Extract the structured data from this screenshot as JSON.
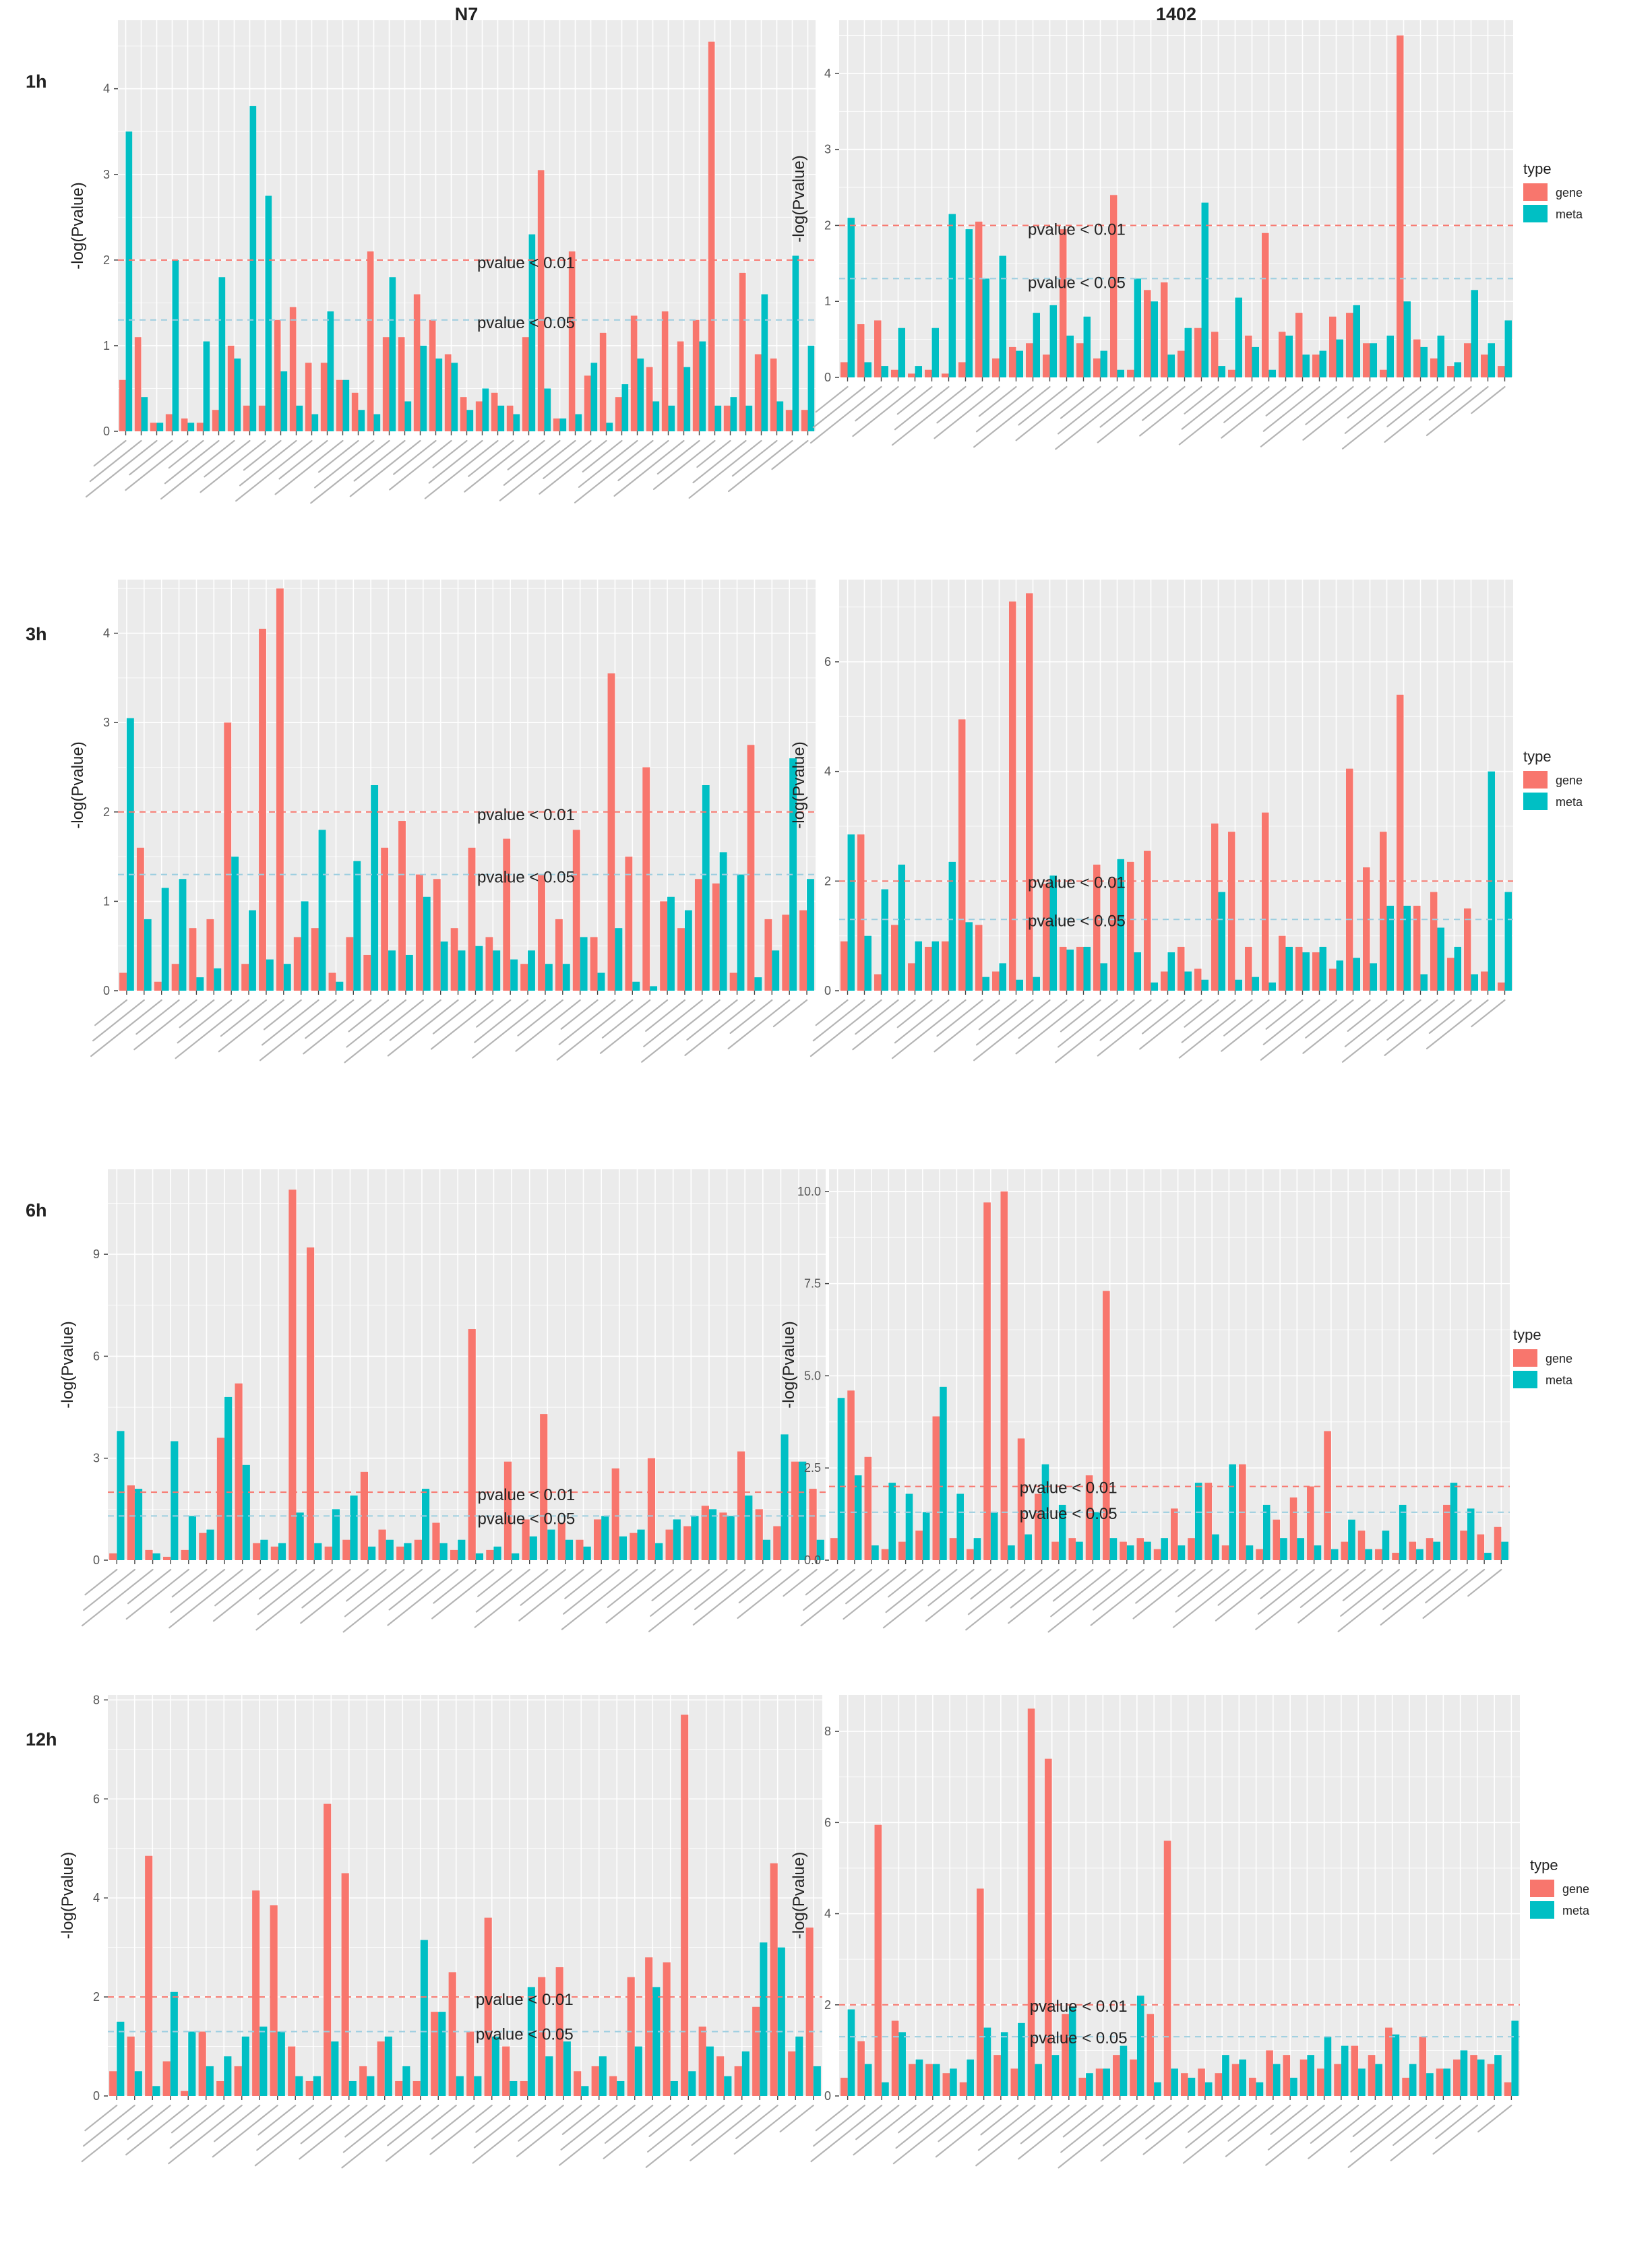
{
  "figure": {
    "columns": [
      "N7",
      "1402"
    ],
    "rows": [
      "1h",
      "3h",
      "6h",
      "12h"
    ],
    "colors": {
      "gene": "#F8766D",
      "meta": "#00BFC4",
      "panel_bg": "#EBEBEB",
      "grid": "#FFFFFF",
      "line_p01": "#F8766D",
      "line_p05": "#9CCEE0"
    },
    "legend": {
      "title": "type",
      "items": [
        "gene",
        "meta"
      ]
    }
  },
  "chart_data": [
    {
      "type": "bar",
      "column": "N7",
      "row": "1h",
      "ylabel": "-log(Pvalue)",
      "ylim": [
        0,
        4.8
      ],
      "yticks": [
        "0",
        "1",
        "2",
        "3",
        "4"
      ],
      "yticks_values": [
        0,
        1,
        2,
        3,
        4
      ],
      "thresholds": [
        {
          "label": "pvalue < 0.01",
          "value": 2.0
        },
        {
          "label": "pvalue < 0.05",
          "value": 1.3
        }
      ],
      "legend": false,
      "series": [
        {
          "name": "gene",
          "values": [
            0.6,
            1.1,
            0.1,
            0.2,
            0.15,
            0.1,
            0.25,
            1.0,
            0.3,
            0.3,
            1.3,
            1.45,
            0.8,
            0.8,
            0.6,
            0.45,
            2.1,
            1.1,
            1.1,
            1.6,
            1.3,
            0.9,
            0.4,
            0.35,
            0.45,
            0.3,
            1.1,
            3.05,
            0.15,
            2.1,
            0.65,
            1.15,
            0.4,
            1.35,
            0.75,
            1.4,
            1.05,
            1.3,
            4.55,
            0.3,
            1.85,
            0.9,
            0.85,
            0.25,
            0.25
          ]
        },
        {
          "name": "meta",
          "values": [
            3.5,
            0.4,
            0.1,
            2.0,
            0.1,
            1.05,
            1.8,
            0.85,
            3.8,
            2.75,
            0.7,
            0.3,
            0.2,
            1.4,
            0.6,
            0.25,
            0.2,
            1.8,
            0.35,
            1.0,
            0.85,
            0.8,
            0.25,
            0.5,
            0.3,
            0.2,
            2.3,
            0.5,
            0.15,
            0.2,
            0.8,
            0.1,
            0.55,
            0.85,
            0.35,
            0.3,
            0.75,
            1.05,
            0.3,
            0.4,
            0.3,
            1.6,
            0.35,
            2.05,
            1.0
          ]
        }
      ]
    },
    {
      "type": "bar",
      "column": "1402",
      "row": "1h",
      "ylabel": "-log(Pvalue)",
      "ylim": [
        0,
        4.7
      ],
      "yticks": [
        "0",
        "1",
        "2",
        "3",
        "4"
      ],
      "yticks_values": [
        0,
        1,
        2,
        3,
        4
      ],
      "thresholds": [
        {
          "label": "pvalue < 0.01",
          "value": 2.0
        },
        {
          "label": "pvalue < 0.05",
          "value": 1.3
        }
      ],
      "legend": true,
      "series": [
        {
          "name": "gene",
          "values": [
            0.2,
            0.7,
            0.75,
            0.1,
            0.05,
            0.1,
            0.05,
            0.2,
            2.05,
            0.25,
            0.4,
            0.45,
            0.3,
            1.95,
            0.45,
            0.25,
            2.4,
            0.1,
            1.15,
            1.25,
            0.35,
            0.65,
            0.6,
            0.1,
            0.55,
            1.9,
            0.6,
            0.85,
            0.3,
            0.8,
            0.85,
            0.45,
            0.1,
            4.5,
            0.5,
            0.25,
            0.15,
            0.45,
            0.3,
            0.15
          ]
        },
        {
          "name": "meta",
          "values": [
            2.1,
            0.2,
            0.15,
            0.65,
            0.15,
            0.65,
            2.15,
            1.95,
            1.3,
            1.6,
            0.35,
            0.85,
            0.95,
            0.55,
            0.8,
            0.35,
            0.1,
            1.3,
            1.0,
            0.3,
            0.65,
            2.3,
            0.15,
            1.05,
            0.4,
            0.1,
            0.55,
            0.3,
            0.35,
            0.5,
            0.95,
            0.45,
            0.55,
            1.0,
            0.4,
            0.55,
            0.2,
            1.15,
            0.45,
            0.75
          ]
        }
      ]
    },
    {
      "type": "bar",
      "column": "N7",
      "row": "3h",
      "ylabel": "-log(Pvalue)",
      "ylim": [
        0,
        4.6
      ],
      "yticks": [
        "0",
        "1",
        "2",
        "3",
        "4"
      ],
      "yticks_values": [
        0,
        1,
        2,
        3,
        4
      ],
      "thresholds": [
        {
          "label": "pvalue < 0.01",
          "value": 2.0
        },
        {
          "label": "pvalue < 0.05",
          "value": 1.3
        }
      ],
      "legend": false,
      "series": [
        {
          "name": "gene",
          "values": [
            0.2,
            1.6,
            0.1,
            0.3,
            0.7,
            0.8,
            3.0,
            0.3,
            4.05,
            4.5,
            0.6,
            0.7,
            0.2,
            0.6,
            0.4,
            1.6,
            1.9,
            1.3,
            1.25,
            0.7,
            1.6,
            0.6,
            1.7,
            0.3,
            1.3,
            0.8,
            1.8,
            0.6,
            3.55,
            1.5,
            2.5,
            1.0,
            0.7,
            1.25,
            1.2,
            0.2,
            2.75,
            0.8,
            0.85,
            0.9
          ]
        },
        {
          "name": "meta",
          "values": [
            3.05,
            0.8,
            1.15,
            1.25,
            0.15,
            0.25,
            1.5,
            0.9,
            0.35,
            0.3,
            1.0,
            1.8,
            0.1,
            1.45,
            2.3,
            0.45,
            0.4,
            1.05,
            0.55,
            0.45,
            0.5,
            0.45,
            0.35,
            0.45,
            0.3,
            0.3,
            0.6,
            0.2,
            0.7,
            0.1,
            0.05,
            1.05,
            0.9,
            2.3,
            1.55,
            1.3,
            0.15,
            0.45,
            2.6,
            1.25
          ]
        }
      ]
    },
    {
      "type": "bar",
      "column": "1402",
      "row": "3h",
      "ylabel": "-log(Pvalue)",
      "ylim": [
        0,
        7.5
      ],
      "yticks": [
        "0",
        "2",
        "4",
        "6"
      ],
      "yticks_values": [
        0,
        2,
        4,
        6
      ],
      "thresholds": [
        {
          "label": "pvalue < 0.01",
          "value": 2.0
        },
        {
          "label": "pvalue < 0.05",
          "value": 1.3
        }
      ],
      "legend": true,
      "series": [
        {
          "name": "gene",
          "values": [
            0.9,
            2.85,
            0.3,
            1.2,
            0.5,
            0.8,
            0.9,
            4.95,
            1.2,
            0.35,
            7.1,
            7.25,
            1.95,
            0.8,
            0.8,
            2.3,
            2.05,
            2.35,
            2.55,
            0.35,
            0.8,
            0.4,
            3.05,
            2.9,
            0.8,
            3.25,
            1.0,
            0.8,
            0.7,
            0.4,
            4.05,
            2.25,
            2.9,
            5.4,
            1.55,
            1.8,
            0.6,
            1.5,
            0.35,
            0.15
          ]
        },
        {
          "name": "meta",
          "values": [
            2.85,
            1.0,
            1.85,
            2.3,
            0.9,
            0.9,
            2.35,
            1.25,
            0.25,
            0.5,
            0.2,
            0.25,
            2.1,
            0.75,
            0.8,
            0.5,
            2.4,
            0.7,
            0.15,
            0.7,
            0.35,
            0.2,
            1.8,
            0.2,
            0.25,
            0.15,
            0.8,
            0.7,
            0.8,
            0.55,
            0.6,
            0.5,
            1.55,
            1.55,
            0.3,
            1.15,
            0.8,
            0.3,
            4.0,
            1.8
          ]
        }
      ]
    },
    {
      "type": "bar",
      "column": "N7",
      "row": "6h",
      "ylabel": "-log(Pvalue)",
      "ylim": [
        0,
        11.5
      ],
      "yticks": [
        "0",
        "3",
        "6",
        "9"
      ],
      "yticks_values": [
        0,
        3,
        6,
        9
      ],
      "thresholds": [
        {
          "label": "pvalue < 0.01",
          "value": 2.0
        },
        {
          "label": "pvalue < 0.05",
          "value": 1.3
        }
      ],
      "legend": false,
      "series": [
        {
          "name": "gene",
          "values": [
            0.2,
            2.2,
            0.3,
            0.1,
            0.3,
            0.8,
            3.6,
            5.2,
            0.5,
            0.4,
            10.9,
            9.2,
            0.4,
            0.6,
            2.6,
            0.9,
            0.4,
            0.6,
            1.1,
            0.3,
            6.8,
            0.3,
            2.9,
            1.2,
            4.3,
            1.1,
            0.6,
            1.2,
            2.7,
            0.8,
            3.0,
            0.9,
            1.0,
            1.6,
            1.4,
            3.2,
            1.5,
            1.0,
            2.9,
            2.1
          ]
        },
        {
          "name": "meta",
          "values": [
            3.8,
            2.1,
            0.2,
            3.5,
            1.3,
            0.9,
            4.8,
            2.8,
            0.6,
            0.5,
            1.4,
            0.5,
            1.5,
            1.9,
            0.4,
            0.6,
            0.5,
            2.1,
            0.5,
            0.6,
            0.2,
            0.4,
            0.2,
            0.7,
            0.9,
            0.6,
            0.4,
            1.3,
            0.7,
            0.9,
            0.5,
            1.2,
            1.3,
            1.5,
            1.3,
            1.9,
            0.6,
            3.7,
            2.9,
            0.6
          ]
        }
      ]
    },
    {
      "type": "bar",
      "column": "1402",
      "row": "6h",
      "ylabel": "-log(Pvalue)",
      "ylim": [
        0,
        10.6
      ],
      "yticks": [
        "0.0",
        "2.5",
        "5.0",
        "7.5",
        "10.0"
      ],
      "yticks_values": [
        0,
        2.5,
        5,
        7.5,
        10
      ],
      "thresholds": [
        {
          "label": "pvalue < 0.01",
          "value": 2.0
        },
        {
          "label": "pvalue < 0.05",
          "value": 1.3
        }
      ],
      "legend": true,
      "series": [
        {
          "name": "gene",
          "values": [
            0.6,
            4.6,
            2.8,
            0.3,
            0.5,
            0.8,
            3.9,
            0.6,
            0.3,
            9.7,
            10.0,
            3.3,
            1.8,
            0.5,
            0.6,
            2.3,
            7.3,
            0.5,
            0.6,
            0.3,
            1.4,
            0.6,
            2.1,
            0.4,
            2.6,
            0.3,
            1.1,
            1.7,
            2.0,
            3.5,
            0.5,
            0.8,
            0.3,
            0.2,
            0.5,
            0.6,
            1.5,
            0.8,
            0.7,
            0.9
          ]
        },
        {
          "name": "meta",
          "values": [
            4.4,
            2.3,
            0.4,
            2.1,
            1.8,
            1.3,
            4.7,
            1.8,
            0.6,
            1.3,
            0.4,
            0.7,
            2.6,
            1.5,
            0.5,
            1.3,
            0.6,
            0.4,
            0.5,
            0.6,
            0.4,
            2.1,
            0.7,
            2.6,
            0.4,
            1.5,
            0.6,
            0.6,
            0.4,
            0.3,
            1.1,
            0.3,
            0.8,
            1.5,
            0.3,
            0.5,
            2.1,
            1.4,
            0.2,
            0.5
          ]
        }
      ]
    },
    {
      "type": "bar",
      "column": "N7",
      "row": "12h",
      "ylabel": "-log(Pvalue)",
      "ylim": [
        0,
        8.1
      ],
      "yticks": [
        "0",
        "2",
        "4",
        "6",
        "8"
      ],
      "yticks_values": [
        0,
        2,
        4,
        6,
        8
      ],
      "thresholds": [
        {
          "label": "pvalue < 0.01",
          "value": 2.0
        },
        {
          "label": "pvalue < 0.05",
          "value": 1.3
        }
      ],
      "legend": false,
      "series": [
        {
          "name": "gene",
          "values": [
            0.5,
            1.2,
            4.85,
            0.7,
            0.1,
            1.3,
            0.3,
            0.6,
            4.15,
            3.85,
            1.0,
            0.3,
            5.9,
            4.5,
            0.6,
            1.1,
            0.3,
            0.3,
            1.7,
            2.5,
            1.3,
            3.6,
            1.0,
            0.3,
            2.4,
            2.6,
            0.5,
            0.6,
            0.4,
            2.4,
            2.8,
            2.7,
            7.7,
            1.4,
            0.8,
            0.6,
            1.8,
            4.7,
            0.9,
            3.4
          ]
        },
        {
          "name": "meta",
          "values": [
            1.5,
            0.5,
            0.2,
            2.1,
            1.3,
            0.6,
            0.8,
            1.2,
            1.4,
            1.3,
            0.4,
            0.4,
            1.1,
            0.3,
            0.4,
            1.2,
            0.6,
            3.15,
            1.7,
            0.4,
            0.4,
            1.2,
            0.3,
            2.2,
            0.8,
            1.1,
            0.2,
            0.8,
            0.3,
            1.0,
            2.2,
            0.3,
            0.5,
            1.0,
            0.4,
            0.9,
            3.1,
            3.0,
            1.2,
            0.6
          ]
        }
      ]
    },
    {
      "type": "bar",
      "column": "1402",
      "row": "12h",
      "ylabel": "-log(Pvalue)",
      "ylim": [
        0,
        8.8
      ],
      "yticks": [
        "0",
        "2",
        "4",
        "6",
        "8"
      ],
      "yticks_values": [
        0,
        2,
        4,
        6,
        8
      ],
      "thresholds": [
        {
          "label": "pvalue < 0.01",
          "value": 2.0
        },
        {
          "label": "pvalue < 0.05",
          "value": 1.3
        }
      ],
      "legend": true,
      "series": [
        {
          "name": "gene",
          "values": [
            0.4,
            1.2,
            5.95,
            1.65,
            0.7,
            0.7,
            0.5,
            0.3,
            4.55,
            0.9,
            0.6,
            8.5,
            7.4,
            1.8,
            0.4,
            0.6,
            0.9,
            0.8,
            1.8,
            5.6,
            0.5,
            0.6,
            0.5,
            0.7,
            0.4,
            1.0,
            0.9,
            0.8,
            0.6,
            0.7,
            1.1,
            0.9,
            1.5,
            0.4,
            1.3,
            0.6,
            0.8,
            0.9,
            0.7,
            0.3
          ]
        },
        {
          "name": "meta",
          "values": [
            1.9,
            0.7,
            0.3,
            1.4,
            0.8,
            0.7,
            0.6,
            0.8,
            1.5,
            1.4,
            1.6,
            0.7,
            0.9,
            1.95,
            0.5,
            0.6,
            1.1,
            2.2,
            0.3,
            0.6,
            0.4,
            0.3,
            0.9,
            0.8,
            0.3,
            0.7,
            0.4,
            0.9,
            1.3,
            1.1,
            0.6,
            0.7,
            1.35,
            0.7,
            0.5,
            0.6,
            1.0,
            0.8,
            0.9,
            1.65
          ]
        }
      ]
    }
  ]
}
